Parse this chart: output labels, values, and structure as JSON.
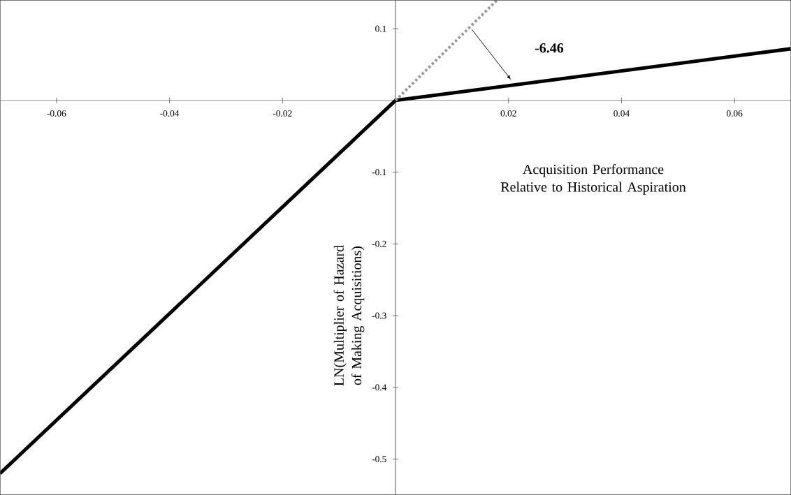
{
  "chart_data": {
    "type": "line",
    "xlabel": "Acquisition Performance Relative to Historical Aspiration",
    "ylabel": "LN(Multiplier of Hazard of Making Acquisitions)",
    "xlim": [
      -0.07,
      0.07
    ],
    "ylim": [
      -0.55,
      0.14
    ],
    "xticks": [
      -0.06,
      -0.04,
      -0.02,
      0.02,
      0.04,
      0.06
    ],
    "yticks": [
      -0.5,
      -0.4,
      -0.3,
      -0.2,
      -0.1,
      0.1
    ],
    "series": [
      {
        "x": [
          -0.07,
          0,
          0.07
        ],
        "values": [
          -0.52,
          0,
          0.072
        ],
        "color": "#000000",
        "line_style": "solid"
      },
      {
        "x": [
          0,
          0.018
        ],
        "values": [
          0,
          0.14
        ],
        "color": "#999999",
        "line_style": "dotted"
      }
    ],
    "annotations": [
      {
        "text": "-6.46",
        "x": 0.0206,
        "y": 0.025
      }
    ]
  }
}
